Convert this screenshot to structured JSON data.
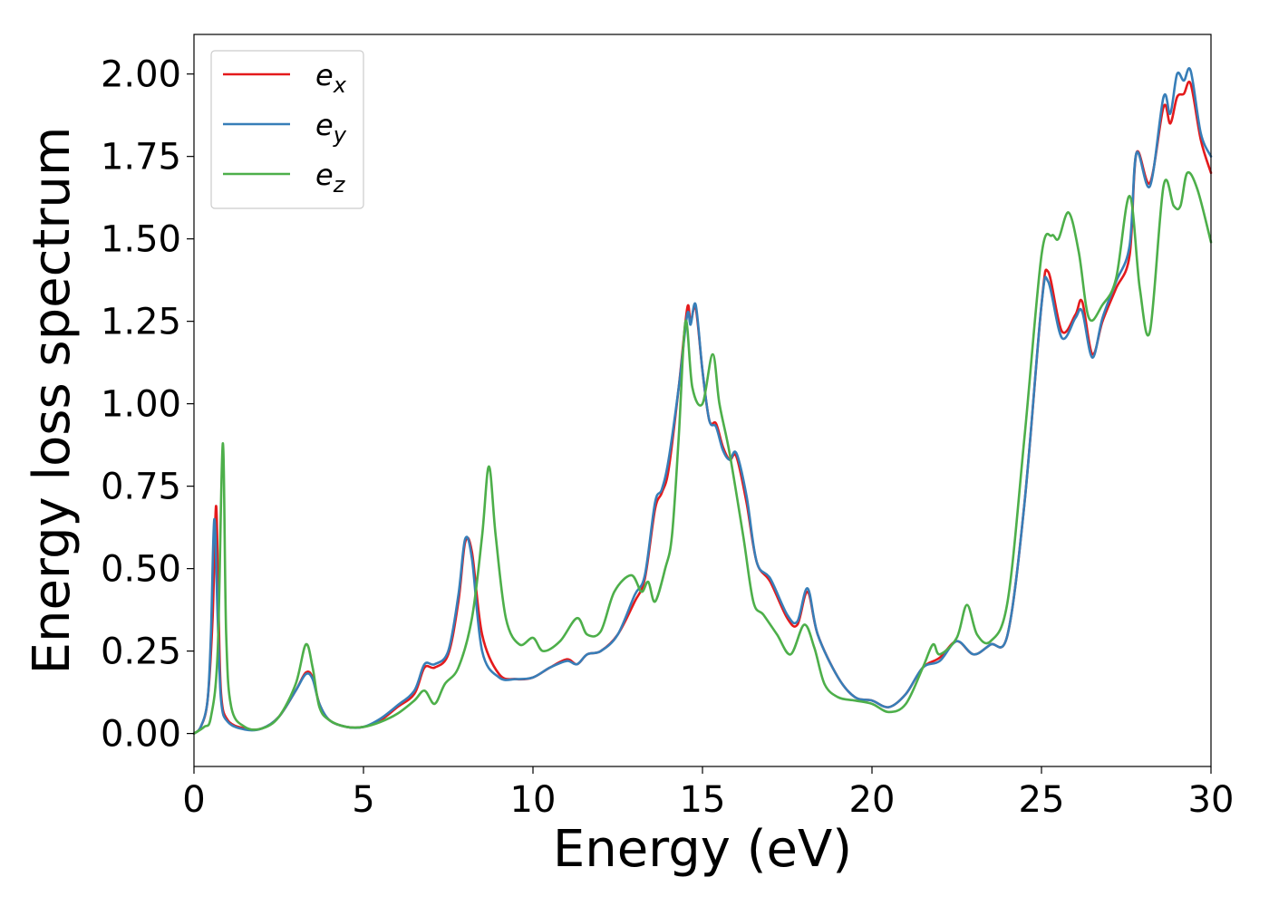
{
  "chart_data": {
    "type": "line",
    "title": "",
    "xlabel": "Energy (eV)",
    "ylabel": "Energy loss spectrum",
    "xlim": [
      0,
      30
    ],
    "ylim": [
      -0.1,
      2.12
    ],
    "xticks": [
      "0",
      "5",
      "10",
      "15",
      "20",
      "25",
      "30"
    ],
    "yticks": [
      "0.00",
      "0.25",
      "0.50",
      "0.75",
      "1.00",
      "1.25",
      "1.50",
      "1.75",
      "2.00"
    ],
    "grid": false,
    "legend_position": "top-left",
    "series": [
      {
        "name": "e_x",
        "label_base": "e",
        "label_sub": "x",
        "color": "#e41a1c",
        "points": [
          [
            0,
            0.0
          ],
          [
            0.2,
            0.02
          ],
          [
            0.4,
            0.1
          ],
          [
            0.55,
            0.35
          ],
          [
            0.65,
            0.69
          ],
          [
            0.72,
            0.4
          ],
          [
            0.8,
            0.12
          ],
          [
            1.0,
            0.04
          ],
          [
            1.5,
            0.015
          ],
          [
            2.0,
            0.015
          ],
          [
            2.5,
            0.05
          ],
          [
            3.0,
            0.13
          ],
          [
            3.3,
            0.185
          ],
          [
            3.5,
            0.17
          ],
          [
            3.7,
            0.09
          ],
          [
            4.0,
            0.04
          ],
          [
            4.5,
            0.02
          ],
          [
            5.0,
            0.02
          ],
          [
            5.5,
            0.04
          ],
          [
            6.0,
            0.08
          ],
          [
            6.5,
            0.12
          ],
          [
            6.8,
            0.2
          ],
          [
            7.1,
            0.2
          ],
          [
            7.5,
            0.24
          ],
          [
            7.8,
            0.4
          ],
          [
            8.0,
            0.58
          ],
          [
            8.2,
            0.55
          ],
          [
            8.5,
            0.3
          ],
          [
            9.0,
            0.18
          ],
          [
            9.5,
            0.165
          ],
          [
            10.0,
            0.17
          ],
          [
            10.5,
            0.2
          ],
          [
            11.0,
            0.225
          ],
          [
            11.3,
            0.21
          ],
          [
            11.6,
            0.24
          ],
          [
            12.0,
            0.25
          ],
          [
            12.5,
            0.3
          ],
          [
            13.0,
            0.4
          ],
          [
            13.3,
            0.47
          ],
          [
            13.6,
            0.68
          ],
          [
            13.8,
            0.73
          ],
          [
            14.0,
            0.8
          ],
          [
            14.3,
            1.05
          ],
          [
            14.55,
            1.29
          ],
          [
            14.65,
            1.25
          ],
          [
            14.8,
            1.29
          ],
          [
            15.0,
            1.1
          ],
          [
            15.2,
            0.95
          ],
          [
            15.4,
            0.94
          ],
          [
            15.6,
            0.87
          ],
          [
            15.8,
            0.83
          ],
          [
            16.0,
            0.84
          ],
          [
            16.3,
            0.7
          ],
          [
            16.6,
            0.52
          ],
          [
            17.0,
            0.46
          ],
          [
            17.5,
            0.35
          ],
          [
            17.8,
            0.33
          ],
          [
            18.1,
            0.43
          ],
          [
            18.4,
            0.3
          ],
          [
            19.0,
            0.17
          ],
          [
            19.5,
            0.11
          ],
          [
            20.0,
            0.1
          ],
          [
            20.5,
            0.08
          ],
          [
            21.0,
            0.12
          ],
          [
            21.5,
            0.2
          ],
          [
            22.0,
            0.23
          ],
          [
            22.5,
            0.28
          ],
          [
            23.0,
            0.24
          ],
          [
            23.5,
            0.27
          ],
          [
            24.0,
            0.3
          ],
          [
            24.5,
            0.7
          ],
          [
            25.0,
            1.3
          ],
          [
            25.2,
            1.4
          ],
          [
            25.6,
            1.22
          ],
          [
            26.0,
            1.27
          ],
          [
            26.2,
            1.31
          ],
          [
            26.5,
            1.15
          ],
          [
            26.8,
            1.25
          ],
          [
            27.2,
            1.35
          ],
          [
            27.6,
            1.45
          ],
          [
            27.8,
            1.76
          ],
          [
            28.2,
            1.67
          ],
          [
            28.6,
            1.9
          ],
          [
            28.8,
            1.85
          ],
          [
            29.0,
            1.93
          ],
          [
            29.2,
            1.94
          ],
          [
            29.4,
            1.97
          ],
          [
            29.7,
            1.8
          ],
          [
            30.0,
            1.7
          ]
        ]
      },
      {
        "name": "e_y",
        "label_base": "e",
        "label_sub": "y",
        "color": "#377eb8",
        "points": [
          [
            0,
            0.0
          ],
          [
            0.2,
            0.02
          ],
          [
            0.4,
            0.1
          ],
          [
            0.5,
            0.3
          ],
          [
            0.6,
            0.65
          ],
          [
            0.7,
            0.35
          ],
          [
            0.8,
            0.1
          ],
          [
            1.0,
            0.035
          ],
          [
            1.5,
            0.012
          ],
          [
            2.0,
            0.015
          ],
          [
            2.5,
            0.05
          ],
          [
            3.0,
            0.13
          ],
          [
            3.3,
            0.18
          ],
          [
            3.5,
            0.165
          ],
          [
            3.7,
            0.09
          ],
          [
            4.0,
            0.04
          ],
          [
            4.5,
            0.02
          ],
          [
            5.0,
            0.02
          ],
          [
            5.5,
            0.045
          ],
          [
            6.0,
            0.085
          ],
          [
            6.5,
            0.13
          ],
          [
            6.8,
            0.21
          ],
          [
            7.1,
            0.21
          ],
          [
            7.5,
            0.25
          ],
          [
            7.8,
            0.42
          ],
          [
            8.0,
            0.59
          ],
          [
            8.2,
            0.53
          ],
          [
            8.5,
            0.25
          ],
          [
            9.0,
            0.17
          ],
          [
            9.5,
            0.165
          ],
          [
            10.0,
            0.17
          ],
          [
            10.5,
            0.2
          ],
          [
            11.0,
            0.22
          ],
          [
            11.3,
            0.21
          ],
          [
            11.6,
            0.24
          ],
          [
            12.0,
            0.25
          ],
          [
            12.5,
            0.3
          ],
          [
            13.0,
            0.42
          ],
          [
            13.3,
            0.48
          ],
          [
            13.6,
            0.7
          ],
          [
            13.8,
            0.74
          ],
          [
            14.0,
            0.83
          ],
          [
            14.3,
            1.05
          ],
          [
            14.55,
            1.27
          ],
          [
            14.65,
            1.24
          ],
          [
            14.8,
            1.3
          ],
          [
            15.0,
            1.1
          ],
          [
            15.2,
            0.95
          ],
          [
            15.4,
            0.93
          ],
          [
            15.6,
            0.86
          ],
          [
            15.8,
            0.83
          ],
          [
            16.0,
            0.85
          ],
          [
            16.3,
            0.72
          ],
          [
            16.6,
            0.52
          ],
          [
            17.0,
            0.47
          ],
          [
            17.5,
            0.36
          ],
          [
            17.8,
            0.34
          ],
          [
            18.1,
            0.44
          ],
          [
            18.4,
            0.3
          ],
          [
            19.0,
            0.17
          ],
          [
            19.5,
            0.11
          ],
          [
            20.0,
            0.1
          ],
          [
            20.5,
            0.08
          ],
          [
            21.0,
            0.12
          ],
          [
            21.5,
            0.2
          ],
          [
            22.0,
            0.22
          ],
          [
            22.5,
            0.28
          ],
          [
            23.0,
            0.24
          ],
          [
            23.5,
            0.27
          ],
          [
            24.0,
            0.3
          ],
          [
            24.5,
            0.7
          ],
          [
            25.0,
            1.3
          ],
          [
            25.2,
            1.37
          ],
          [
            25.6,
            1.2
          ],
          [
            26.0,
            1.26
          ],
          [
            26.2,
            1.28
          ],
          [
            26.5,
            1.14
          ],
          [
            26.8,
            1.26
          ],
          [
            27.2,
            1.37
          ],
          [
            27.6,
            1.48
          ],
          [
            27.8,
            1.76
          ],
          [
            28.2,
            1.66
          ],
          [
            28.6,
            1.93
          ],
          [
            28.8,
            1.88
          ],
          [
            29.0,
            2.0
          ],
          [
            29.2,
            1.98
          ],
          [
            29.4,
            2.01
          ],
          [
            29.7,
            1.82
          ],
          [
            30.0,
            1.75
          ]
        ]
      },
      {
        "name": "e_z",
        "label_base": "e",
        "label_sub": "z",
        "color": "#4daf4a",
        "points": [
          [
            0,
            0.0
          ],
          [
            0.3,
            0.02
          ],
          [
            0.5,
            0.05
          ],
          [
            0.7,
            0.25
          ],
          [
            0.85,
            0.88
          ],
          [
            0.95,
            0.3
          ],
          [
            1.1,
            0.08
          ],
          [
            1.5,
            0.02
          ],
          [
            2.0,
            0.015
          ],
          [
            2.5,
            0.05
          ],
          [
            3.0,
            0.15
          ],
          [
            3.3,
            0.27
          ],
          [
            3.5,
            0.2
          ],
          [
            3.7,
            0.08
          ],
          [
            4.0,
            0.04
          ],
          [
            4.5,
            0.02
          ],
          [
            5.0,
            0.02
          ],
          [
            5.5,
            0.035
          ],
          [
            6.0,
            0.06
          ],
          [
            6.5,
            0.1
          ],
          [
            6.8,
            0.13
          ],
          [
            7.1,
            0.09
          ],
          [
            7.4,
            0.15
          ],
          [
            7.8,
            0.2
          ],
          [
            8.2,
            0.35
          ],
          [
            8.5,
            0.6
          ],
          [
            8.7,
            0.81
          ],
          [
            8.9,
            0.6
          ],
          [
            9.2,
            0.35
          ],
          [
            9.6,
            0.27
          ],
          [
            10.0,
            0.29
          ],
          [
            10.3,
            0.25
          ],
          [
            10.8,
            0.28
          ],
          [
            11.3,
            0.35
          ],
          [
            11.6,
            0.3
          ],
          [
            12.0,
            0.31
          ],
          [
            12.4,
            0.43
          ],
          [
            12.9,
            0.48
          ],
          [
            13.2,
            0.43
          ],
          [
            13.4,
            0.46
          ],
          [
            13.6,
            0.4
          ],
          [
            13.9,
            0.5
          ],
          [
            14.1,
            0.6
          ],
          [
            14.3,
            0.9
          ],
          [
            14.5,
            1.25
          ],
          [
            14.7,
            1.05
          ],
          [
            15.0,
            1.0
          ],
          [
            15.3,
            1.15
          ],
          [
            15.5,
            1.0
          ],
          [
            15.8,
            0.85
          ],
          [
            16.2,
            0.6
          ],
          [
            16.5,
            0.4
          ],
          [
            16.8,
            0.36
          ],
          [
            17.2,
            0.3
          ],
          [
            17.6,
            0.24
          ],
          [
            18.0,
            0.33
          ],
          [
            18.3,
            0.26
          ],
          [
            18.6,
            0.15
          ],
          [
            19.0,
            0.11
          ],
          [
            19.5,
            0.1
          ],
          [
            20.0,
            0.09
          ],
          [
            20.5,
            0.065
          ],
          [
            21.0,
            0.09
          ],
          [
            21.5,
            0.2
          ],
          [
            21.8,
            0.27
          ],
          [
            22.0,
            0.24
          ],
          [
            22.5,
            0.29
          ],
          [
            22.8,
            0.39
          ],
          [
            23.1,
            0.3
          ],
          [
            23.5,
            0.28
          ],
          [
            24.0,
            0.4
          ],
          [
            24.5,
            0.9
          ],
          [
            25.0,
            1.45
          ],
          [
            25.3,
            1.51
          ],
          [
            25.5,
            1.5
          ],
          [
            25.8,
            1.58
          ],
          [
            26.1,
            1.46
          ],
          [
            26.4,
            1.26
          ],
          [
            26.8,
            1.3
          ],
          [
            27.2,
            1.38
          ],
          [
            27.6,
            1.63
          ],
          [
            27.9,
            1.35
          ],
          [
            28.2,
            1.22
          ],
          [
            28.6,
            1.66
          ],
          [
            28.9,
            1.6
          ],
          [
            29.1,
            1.6
          ],
          [
            29.3,
            1.7
          ],
          [
            29.6,
            1.65
          ],
          [
            30.0,
            1.49
          ]
        ]
      }
    ]
  }
}
